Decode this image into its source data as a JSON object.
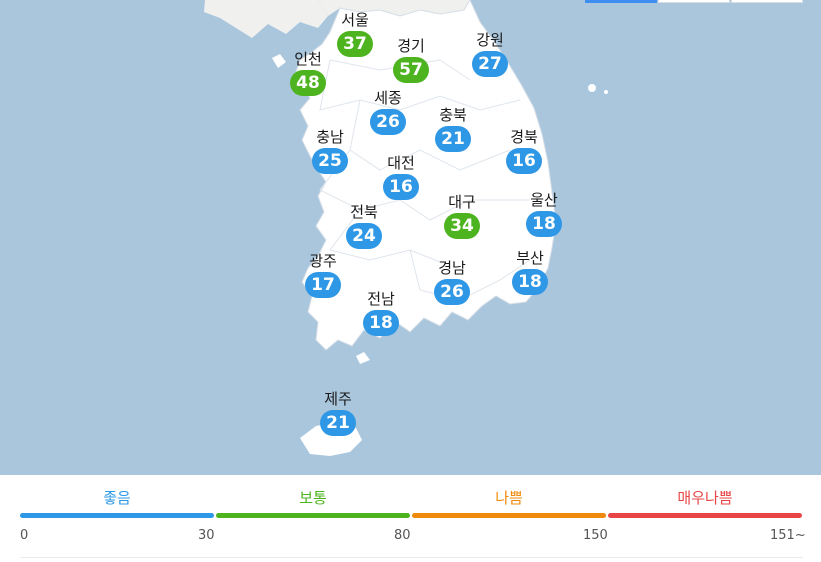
{
  "colors": {
    "sea": "#aac6dd",
    "land": "#ffffff",
    "neighbor_land": "#f0f0ee",
    "border": "#d5dde6",
    "good": "#2e97e6",
    "normal": "#4db31f",
    "bad": "#f08a0c",
    "very_bad": "#e84646"
  },
  "regions": [
    {
      "name": "서울",
      "value": 37,
      "level": "normal"
    },
    {
      "name": "경기",
      "value": 57,
      "level": "normal"
    },
    {
      "name": "강원",
      "value": 27,
      "level": "good"
    },
    {
      "name": "인천",
      "value": 48,
      "level": "normal"
    },
    {
      "name": "세종",
      "value": 26,
      "level": "good"
    },
    {
      "name": "충북",
      "value": 21,
      "level": "good"
    },
    {
      "name": "경북",
      "value": 16,
      "level": "good"
    },
    {
      "name": "충남",
      "value": 25,
      "level": "good"
    },
    {
      "name": "대전",
      "value": 16,
      "level": "good"
    },
    {
      "name": "대구",
      "value": 34,
      "level": "normal"
    },
    {
      "name": "울산",
      "value": 18,
      "level": "good"
    },
    {
      "name": "전북",
      "value": 24,
      "level": "good"
    },
    {
      "name": "광주",
      "value": 17,
      "level": "good"
    },
    {
      "name": "경남",
      "value": 26,
      "level": "good"
    },
    {
      "name": "부산",
      "value": 18,
      "level": "good"
    },
    {
      "name": "전남",
      "value": 18,
      "level": "good"
    },
    {
      "name": "제주",
      "value": 21,
      "level": "good"
    }
  ],
  "legend": {
    "levels": [
      {
        "label": "좋음",
        "color": "#2e97e6"
      },
      {
        "label": "보통",
        "color": "#4db31f"
      },
      {
        "label": "나쁨",
        "color": "#f08a0c"
      },
      {
        "label": "매우나쁨",
        "color": "#e84646"
      }
    ],
    "ticks": [
      "0",
      "30",
      "80",
      "150",
      "151~"
    ]
  }
}
